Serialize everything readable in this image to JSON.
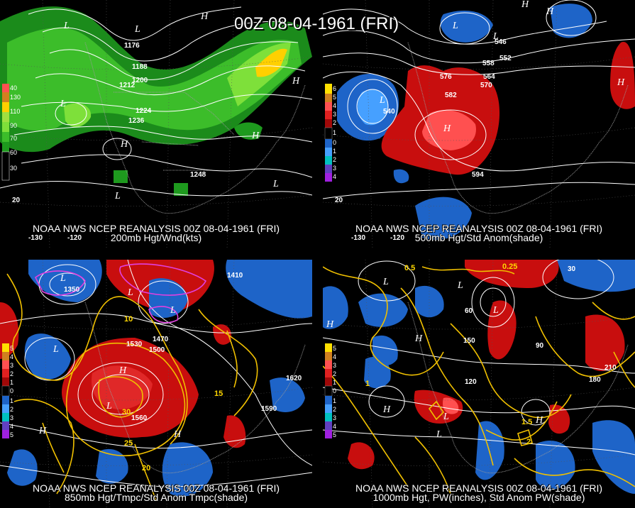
{
  "title": "00Z 08-04-1961 (FRI)",
  "panels": [
    {
      "caption1": "NOAA NWS NCEP REANALYSIS 00Z 08-04-1961 (FRI)",
      "caption2": "200mb Hgt/Wnd(kts)",
      "legend": [
        "40",
        "130",
        "110",
        "90",
        "70",
        "60",
        "30"
      ],
      "contour_labels": [
        "1176",
        "1188",
        "1200",
        "1212",
        "1224",
        "1236",
        "1248"
      ],
      "lon_labels": [
        "-130",
        "-120"
      ],
      "lat_labels": [
        "20"
      ]
    },
    {
      "caption1": "NOAA NWS NCEP REANALYSIS 00Z 08-04-1961 (FRI)",
      "caption2": "500mb Hgt/Std Anom(shade)",
      "legend": [
        "6",
        "5",
        "4",
        "3",
        "2",
        "1",
        "0",
        "1",
        "2",
        "3",
        "4",
        "5"
      ],
      "contour_labels": [
        "540",
        "546",
        "552",
        "558",
        "564",
        "570",
        "576",
        "582",
        "594"
      ],
      "lon_labels": [
        "-130",
        "-120"
      ],
      "lat_labels": [
        "20"
      ]
    },
    {
      "caption1": "NOAA NWS NCEP REANALYSIS 00Z 08-04-1961 (FRI)",
      "caption2": "850mb Hgt/Tmpc/Std Anom Tmpc(shade)",
      "legend": [
        "5",
        "4",
        "3",
        "2",
        "1",
        "0",
        "1",
        "2",
        "3",
        "4",
        "5"
      ],
      "contour_labels": [
        "1350",
        "1410",
        "1470",
        "1500",
        "1530",
        "1560",
        "1590",
        "1620",
        "10",
        "15",
        "20",
        "25",
        "30"
      ],
      "lon_labels": [],
      "lat_labels": []
    },
    {
      "caption1": "NOAA NWS NCEP REANALYSIS 00Z 08-04-1961 (FRI)",
      "caption2": "1000mb Hgt, PW(inches), Std Anom PW(shade)",
      "legend": [
        "5",
        "4",
        "3",
        "2",
        "1",
        "0",
        "1",
        "2",
        "3",
        "4",
        "5"
      ],
      "contour_labels": [
        "30",
        "60",
        "90",
        "120",
        "150",
        "180",
        "210",
        "0.25",
        "0.5",
        "1",
        "1.5",
        "2"
      ],
      "lon_labels": [],
      "lat_labels": []
    }
  ],
  "colors": {
    "green_dark": "#1e9a1e",
    "green_light": "#7ee03a",
    "yellow": "#ffe000",
    "red": "#c80e0e",
    "red_light": "#ff5050",
    "blue": "#1e64c8",
    "blue_light": "#46a0ff",
    "contour_yellow": "#f0c000",
    "contour_magenta": "#e040e0"
  }
}
